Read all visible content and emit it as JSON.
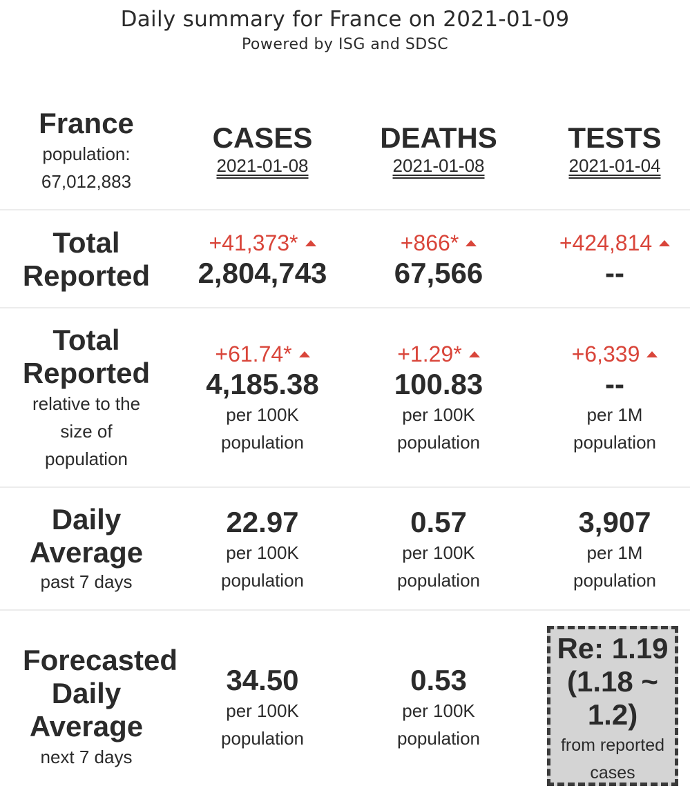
{
  "header": {
    "title": "Daily summary for France on 2021-01-09",
    "subtitle": "Powered by ISG and SDSC"
  },
  "country": {
    "name": "France",
    "population_label": "population:",
    "population": "67,012,883"
  },
  "columns": {
    "cases": {
      "label": "CASES",
      "date": "2021-01-08"
    },
    "deaths": {
      "label": "DEATHS",
      "date": "2021-01-08"
    },
    "tests": {
      "label": "TESTS",
      "date": "2021-01-04"
    }
  },
  "total_reported": {
    "label_line1": "Total",
    "label_line2": "Reported",
    "cases": {
      "delta": "+41,373*",
      "value": "2,804,743"
    },
    "deaths": {
      "delta": "+866*",
      "value": "67,566"
    },
    "tests": {
      "delta": "+424,814",
      "value": "--"
    }
  },
  "relative": {
    "label_line1": "Total",
    "label_line2": "Reported",
    "label_sub1": "relative to the",
    "label_sub2": "size of",
    "label_sub3": "population",
    "cases": {
      "delta": "+61.74*",
      "value": "4,185.38",
      "unit1": "per 100K",
      "unit2": "population"
    },
    "deaths": {
      "delta": "+1.29*",
      "value": "100.83",
      "unit1": "per 100K",
      "unit2": "population"
    },
    "tests": {
      "delta": "+6,339",
      "value": "--",
      "unit1": "per 1M",
      "unit2": "population"
    }
  },
  "daily_average": {
    "label_line1": "Daily",
    "label_line2": "Average",
    "label_sub": "past 7 days",
    "cases": {
      "value": "22.97",
      "unit1": "per 100K",
      "unit2": "population"
    },
    "deaths": {
      "value": "0.57",
      "unit1": "per 100K",
      "unit2": "population"
    },
    "tests": {
      "value": "3,907",
      "unit1": "per 1M",
      "unit2": "population"
    }
  },
  "forecast": {
    "label_line1": "Forecasted",
    "label_line2": "Daily",
    "label_line3": "Average",
    "label_sub": "next 7 days",
    "cases": {
      "value": "34.50",
      "unit1": "per 100K",
      "unit2": "population"
    },
    "deaths": {
      "value": "0.53",
      "unit1": "per 100K",
      "unit2": "population"
    },
    "re": {
      "line1": "Re: 1.19",
      "line2": "(1.18 ~",
      "line3": "1.2)",
      "sub1": "from reported",
      "sub2": "cases"
    }
  },
  "colors": {
    "increase": "#d9453a",
    "text": "#2b2b2b",
    "re_box_bg": "#d4d4d4"
  }
}
